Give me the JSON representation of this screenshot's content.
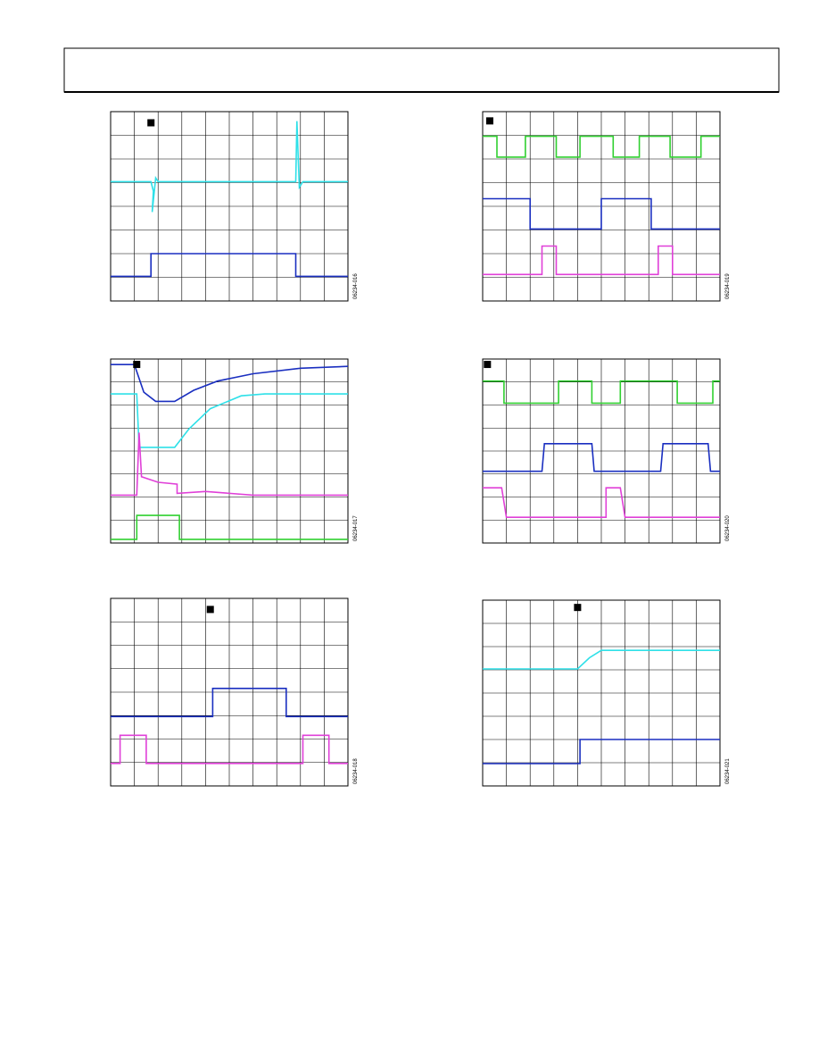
{
  "figures": [
    {
      "id": "06234-016"
    },
    {
      "id": "06234-019"
    },
    {
      "id": "06234-017"
    },
    {
      "id": "06234-020"
    },
    {
      "id": "06234-018"
    },
    {
      "id": "06234-021"
    }
  ]
}
